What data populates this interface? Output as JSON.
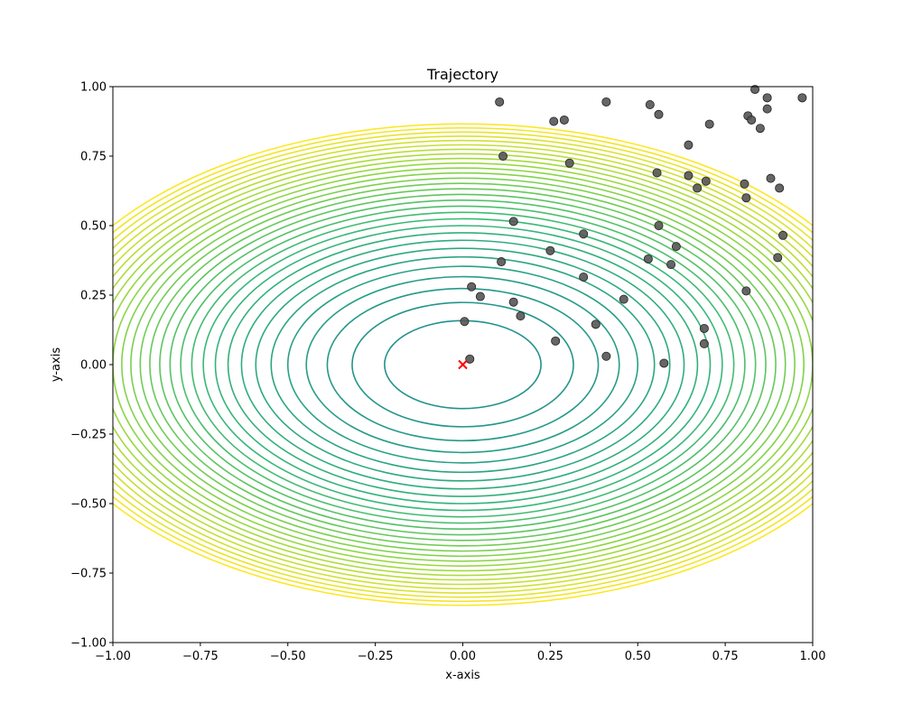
{
  "chart_data": {
    "type": "scatter",
    "title": "Trajectory",
    "xlabel": "x-axis",
    "ylabel": "y-axis",
    "xlim": [
      -1.0,
      1.0
    ],
    "ylim": [
      -1.0,
      1.0
    ],
    "grid": false,
    "x_ticks": [
      "−1.00",
      "−0.75",
      "−0.50",
      "−0.25",
      "0.00",
      "0.25",
      "0.50",
      "0.75",
      "1.00"
    ],
    "y_ticks": [
      "−1.00",
      "−0.75",
      "−0.50",
      "−0.25",
      "0.00",
      "0.25",
      "0.50",
      "0.75",
      "1.00"
    ],
    "x_tick_values": [
      -1.0,
      -0.75,
      -0.5,
      -0.25,
      0.0,
      0.25,
      0.5,
      0.75,
      1.0
    ],
    "y_tick_values": [
      -1.0,
      -0.75,
      -0.5,
      -0.25,
      0.0,
      0.25,
      0.5,
      0.75,
      1.0
    ],
    "background": {
      "type": "contour",
      "function": "x^2 + 2*y^2",
      "level_step": 0.05,
      "levels_count": 30,
      "colormap": [
        "#21918c",
        "#35b779",
        "#90d743",
        "#fde725"
      ]
    },
    "points": {
      "color": "#555555",
      "x": [
        0.005,
        0.02,
        0.025,
        0.05,
        0.145,
        0.165,
        0.265,
        0.38,
        0.41,
        0.575,
        0.69,
        0.69,
        0.81,
        0.345,
        0.46,
        0.53,
        0.595,
        0.11,
        0.145,
        0.25,
        0.345,
        0.56,
        0.61,
        0.9,
        0.915,
        0.81,
        0.805,
        0.88,
        0.905,
        0.67,
        0.695,
        0.555,
        0.645,
        0.645,
        0.115,
        0.305,
        0.705,
        0.105,
        0.26,
        0.29,
        0.41,
        0.535,
        0.56,
        0.815,
        0.825,
        0.85,
        0.87,
        0.835,
        0.87,
        0.97
      ],
      "y": [
        0.155,
        0.02,
        0.28,
        0.245,
        0.225,
        0.175,
        0.085,
        0.145,
        0.03,
        0.005,
        0.075,
        0.13,
        0.265,
        0.315,
        0.235,
        0.38,
        0.36,
        0.37,
        0.515,
        0.41,
        0.47,
        0.5,
        0.425,
        0.385,
        0.465,
        0.6,
        0.65,
        0.67,
        0.635,
        0.635,
        0.66,
        0.69,
        0.68,
        0.79,
        0.75,
        0.725,
        0.865,
        0.945,
        0.875,
        0.88,
        0.945,
        0.935,
        0.9,
        0.895,
        0.88,
        0.85,
        0.92,
        0.99,
        0.96,
        0.96
      ]
    },
    "optimum": {
      "x": 0.0,
      "y": 0.0,
      "marker": "x",
      "color": "#ff0000"
    }
  }
}
